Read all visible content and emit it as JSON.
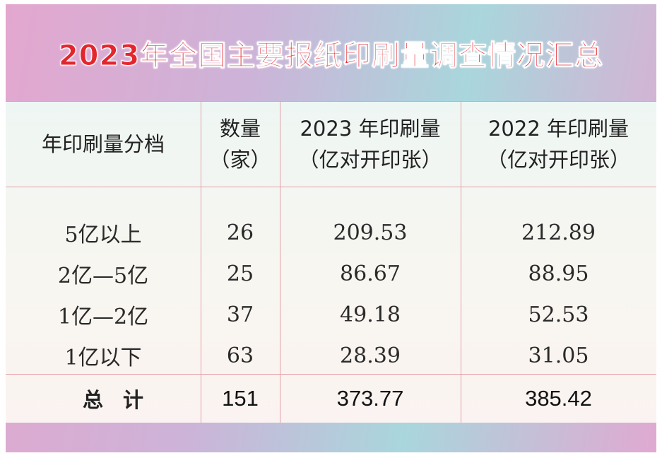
{
  "title": "2023年全国主要报纸印刷量调查情况汇总",
  "headers": {
    "tier": "年印刷量分档",
    "count_l1": "数量",
    "count_l2": "（家）",
    "y2023_l1": "2023 年印刷量",
    "y2023_l2": "（亿对开印张）",
    "y2022_l1": "2022 年印刷量",
    "y2022_l2": "（亿对开印张）"
  },
  "rows": [
    {
      "tier": "5亿以上",
      "count": "26",
      "v2023": "209.53",
      "v2022": "212.89"
    },
    {
      "tier": "2亿—5亿",
      "count": "25",
      "v2023": "86.67",
      "v2022": "88.95"
    },
    {
      "tier": "1亿—2亿",
      "count": "37",
      "v2023": "49.18",
      "v2022": "52.53"
    },
    {
      "tier": "1亿以下",
      "count": "63",
      "v2023": "28.39",
      "v2022": "31.05"
    }
  ],
  "total": {
    "label": "总计",
    "count": "151",
    "v2023": "373.77",
    "v2022": "385.42"
  },
  "colors": {
    "title": "#e3262d",
    "grid": "#e3a0a8"
  }
}
